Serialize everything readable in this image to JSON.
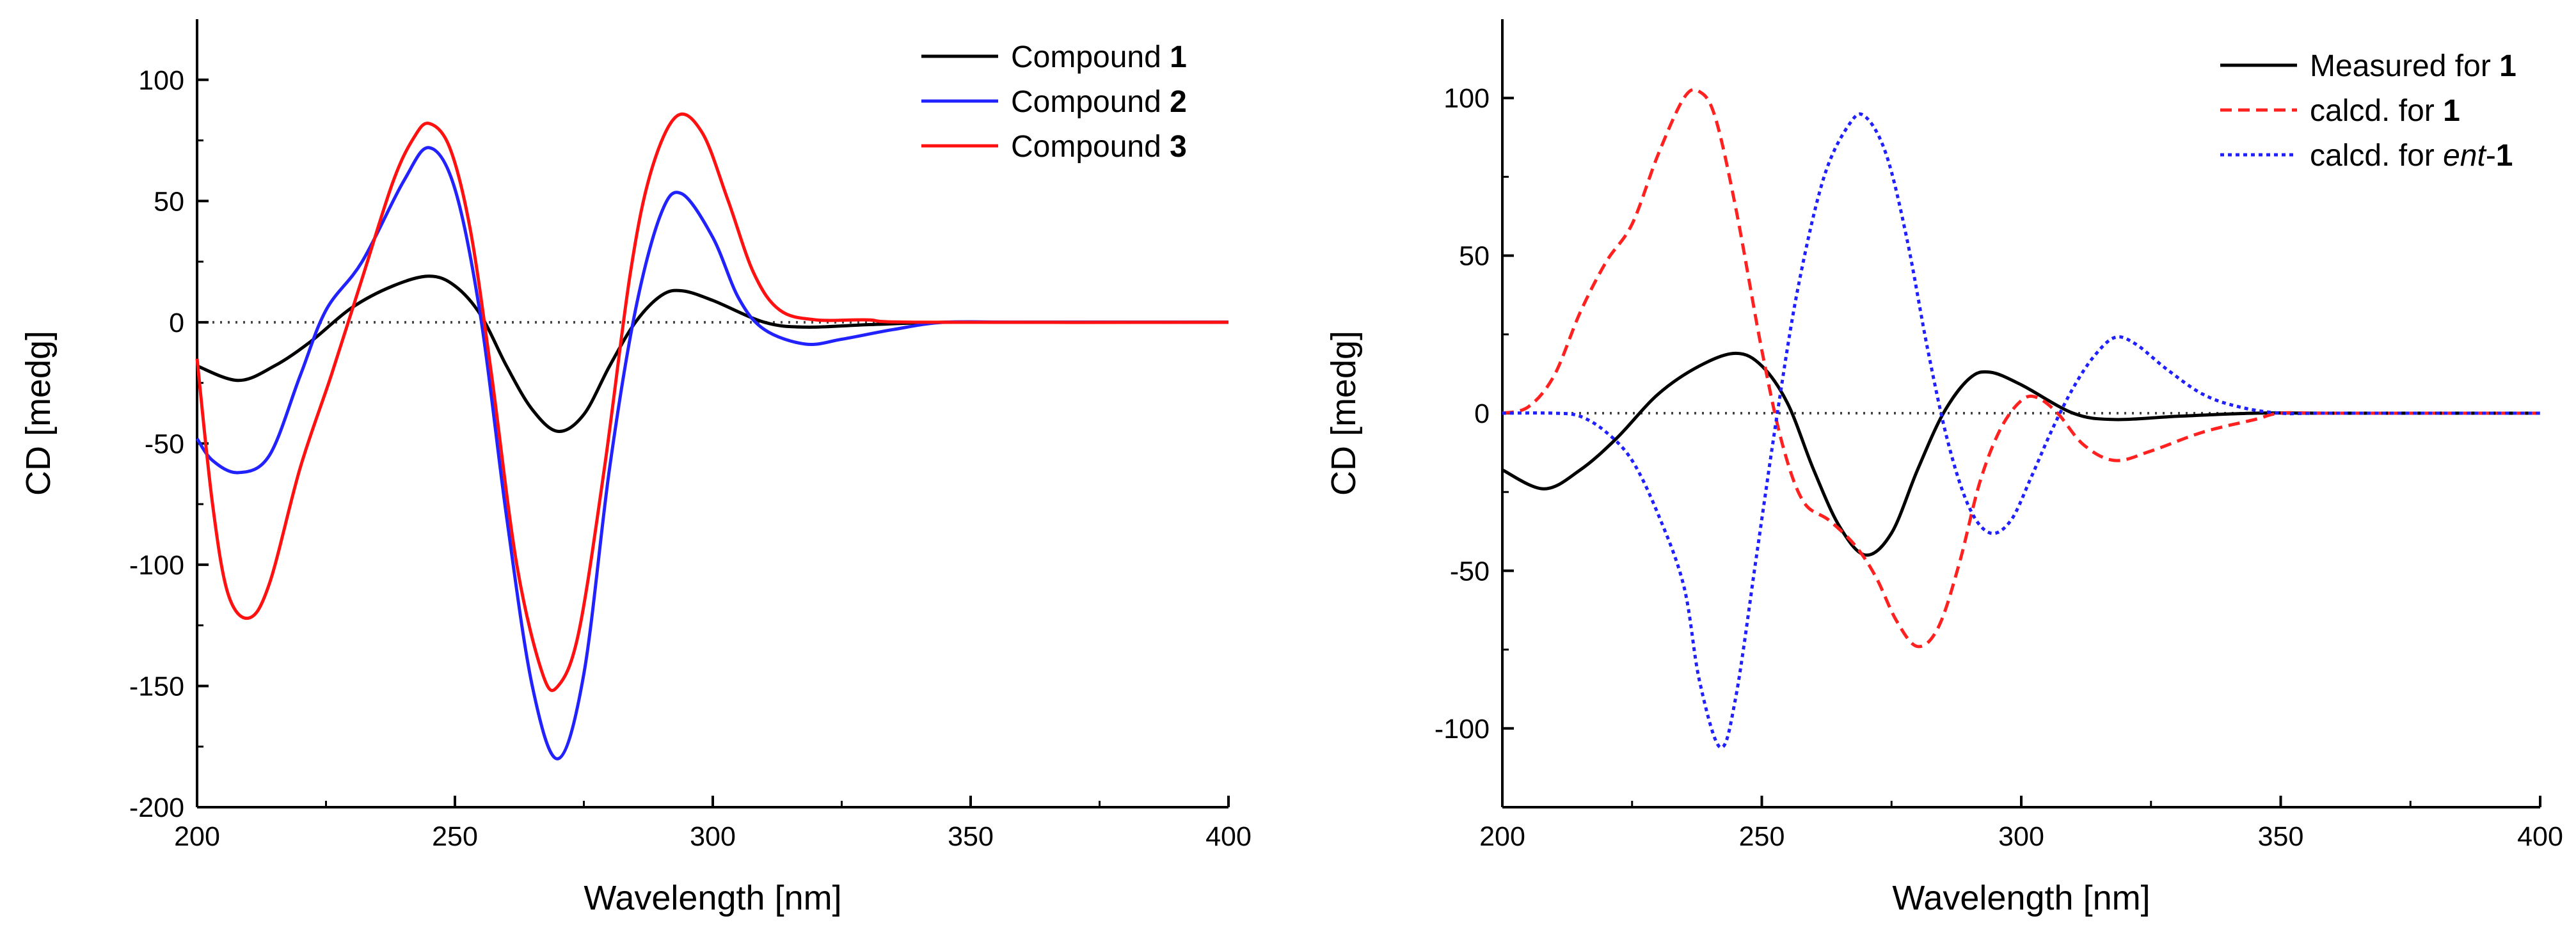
{
  "chart_data": [
    {
      "type": "line",
      "title": "",
      "xlabel": "Wavelength [nm]",
      "ylabel": "CD [medg]",
      "xlim": [
        200,
        400
      ],
      "ylim": [
        -200,
        125
      ],
      "xticks": [
        "200",
        "250",
        "300",
        "350",
        "400"
      ],
      "yticks": [
        "100",
        "50",
        "0",
        "-50",
        "-100",
        "-150",
        "-200"
      ],
      "zero_line": "dotted",
      "legend_position": "top-right",
      "series": [
        {
          "name": "Compound 1",
          "legend_prefix": "Compound ",
          "legend_bold": "1",
          "legend_italic": "",
          "legend_suffix": "",
          "color": "#000000",
          "dash": "solid",
          "points": [
            [
              200,
              -18
            ],
            [
              208,
              -24
            ],
            [
              215,
              -18
            ],
            [
              222,
              -8
            ],
            [
              230,
              6
            ],
            [
              238,
              15
            ],
            [
              245,
              19
            ],
            [
              250,
              15
            ],
            [
              255,
              3
            ],
            [
              260,
              -18
            ],
            [
              265,
              -36
            ],
            [
              270,
              -45
            ],
            [
              275,
              -38
            ],
            [
              280,
              -18
            ],
            [
              285,
              0
            ],
            [
              290,
              11
            ],
            [
              294,
              13
            ],
            [
              300,
              9
            ],
            [
              310,
              0
            ],
            [
              318,
              -2
            ],
            [
              330,
              -1
            ],
            [
              345,
              0
            ],
            [
              360,
              0
            ],
            [
              400,
              0
            ]
          ]
        },
        {
          "name": "Compound 2",
          "legend_prefix": "Compound ",
          "legend_bold": "2",
          "legend_italic": "",
          "legend_suffix": "",
          "color": "#2222ff",
          "dash": "solid",
          "points": [
            [
              200,
              -48
            ],
            [
              203,
              -57
            ],
            [
              208,
              -62
            ],
            [
              214,
              -55
            ],
            [
              220,
              -22
            ],
            [
              225,
              5
            ],
            [
              232,
              25
            ],
            [
              240,
              58
            ],
            [
              245,
              72
            ],
            [
              250,
              55
            ],
            [
              255,
              2
            ],
            [
              260,
              -80
            ],
            [
              265,
              -150
            ],
            [
              270,
              -180
            ],
            [
              275,
              -145
            ],
            [
              280,
              -60
            ],
            [
              285,
              5
            ],
            [
              290,
              45
            ],
            [
              294,
              53
            ],
            [
              300,
              35
            ],
            [
              305,
              10
            ],
            [
              310,
              -3
            ],
            [
              318,
              -9
            ],
            [
              325,
              -7
            ],
            [
              335,
              -3
            ],
            [
              345,
              0
            ],
            [
              360,
              0
            ],
            [
              400,
              0
            ]
          ]
        },
        {
          "name": "Compound 3",
          "legend_prefix": "Compound ",
          "legend_bold": "3",
          "legend_italic": "",
          "legend_suffix": "",
          "color": "#ff1111",
          "dash": "solid",
          "points": [
            [
              200,
              -15
            ],
            [
              203,
              -75
            ],
            [
              206,
              -112
            ],
            [
              210,
              -122
            ],
            [
              214,
              -108
            ],
            [
              220,
              -60
            ],
            [
              226,
              -22
            ],
            [
              232,
              18
            ],
            [
              238,
              58
            ],
            [
              242,
              76
            ],
            [
              245,
              82
            ],
            [
              249,
              72
            ],
            [
              253,
              38
            ],
            [
              257,
              -20
            ],
            [
              262,
              -100
            ],
            [
              267,
              -145
            ],
            [
              270,
              -150
            ],
            [
              274,
              -128
            ],
            [
              279,
              -60
            ],
            [
              284,
              20
            ],
            [
              288,
              62
            ],
            [
              293,
              85
            ],
            [
              298,
              78
            ],
            [
              303,
              50
            ],
            [
              308,
              20
            ],
            [
              313,
              5
            ],
            [
              320,
              1
            ],
            [
              330,
              1
            ],
            [
              340,
              0
            ],
            [
              400,
              0
            ]
          ]
        }
      ]
    },
    {
      "type": "line",
      "title": "",
      "xlabel": "Wavelength [nm]",
      "ylabel": "CD [medg]",
      "xlim": [
        200,
        400
      ],
      "ylim": [
        -125,
        125
      ],
      "xticks": [
        "200",
        "250",
        "300",
        "350",
        "400"
      ],
      "yticks": [
        "100",
        "50",
        "0",
        "-50",
        "-100"
      ],
      "zero_line": "dotted",
      "legend_position": "top-right",
      "series": [
        {
          "name": "Measured for 1",
          "legend_prefix": "Measured for ",
          "legend_bold": "1",
          "legend_italic": "",
          "legend_suffix": "",
          "color": "#000000",
          "dash": "solid",
          "points": [
            [
              200,
              -18
            ],
            [
              208,
              -24
            ],
            [
              215,
              -18
            ],
            [
              222,
              -8
            ],
            [
              230,
              6
            ],
            [
              238,
              15
            ],
            [
              245,
              19
            ],
            [
              250,
              15
            ],
            [
              255,
              3
            ],
            [
              260,
              -18
            ],
            [
              265,
              -36
            ],
            [
              270,
              -45
            ],
            [
              275,
              -38
            ],
            [
              280,
              -18
            ],
            [
              285,
              0
            ],
            [
              290,
              11
            ],
            [
              294,
              13
            ],
            [
              300,
              9
            ],
            [
              310,
              0
            ],
            [
              318,
              -2
            ],
            [
              330,
              -1
            ],
            [
              345,
              0
            ],
            [
              360,
              0
            ],
            [
              400,
              0
            ]
          ]
        },
        {
          "name": "calcd. for 1",
          "legend_prefix": "calcd. for ",
          "legend_bold": "1",
          "legend_italic": "",
          "legend_suffix": "",
          "color": "#ff2020",
          "dash": "dashed",
          "points": [
            [
              200,
              0
            ],
            [
              205,
              2
            ],
            [
              210,
              12
            ],
            [
              215,
              32
            ],
            [
              220,
              48
            ],
            [
              225,
              60
            ],
            [
              230,
              82
            ],
            [
              235,
              100
            ],
            [
              238,
              102
            ],
            [
              241,
              94
            ],
            [
              245,
              65
            ],
            [
              250,
              20
            ],
            [
              254,
              -10
            ],
            [
              258,
              -28
            ],
            [
              263,
              -34
            ],
            [
              268,
              -42
            ],
            [
              272,
              -52
            ],
            [
              276,
              -66
            ],
            [
              280,
              -74
            ],
            [
              284,
              -68
            ],
            [
              288,
              -48
            ],
            [
              292,
              -22
            ],
            [
              296,
              -5
            ],
            [
              300,
              4
            ],
            [
              303,
              5
            ],
            [
              307,
              0
            ],
            [
              312,
              -10
            ],
            [
              318,
              -15
            ],
            [
              325,
              -12
            ],
            [
              335,
              -6
            ],
            [
              345,
              -2
            ],
            [
              350,
              0
            ],
            [
              360,
              0
            ],
            [
              400,
              0
            ]
          ]
        },
        {
          "name": "calcd. for ent-1",
          "legend_prefix": "calcd. for ",
          "legend_bold": "1",
          "legend_italic": "ent",
          "legend_suffix": "-",
          "color": "#2020ff",
          "dash": "dotted",
          "points": [
            [
              200,
              0
            ],
            [
              210,
              0
            ],
            [
              215,
              -1
            ],
            [
              220,
              -6
            ],
            [
              225,
              -15
            ],
            [
              230,
              -32
            ],
            [
              235,
              -55
            ],
            [
              238,
              -85
            ],
            [
              242,
              -106
            ],
            [
              245,
              -90
            ],
            [
              249,
              -45
            ],
            [
              253,
              0
            ],
            [
              257,
              40
            ],
            [
              262,
              75
            ],
            [
              267,
              92
            ],
            [
              270,
              94
            ],
            [
              274,
              82
            ],
            [
              278,
              55
            ],
            [
              282,
              20
            ],
            [
              286,
              -10
            ],
            [
              290,
              -30
            ],
            [
              294,
              -38
            ],
            [
              298,
              -34
            ],
            [
              302,
              -20
            ],
            [
              306,
              -5
            ],
            [
              310,
              8
            ],
            [
              314,
              18
            ],
            [
              318,
              24
            ],
            [
              322,
              22
            ],
            [
              328,
              14
            ],
            [
              335,
              6
            ],
            [
              342,
              2
            ],
            [
              350,
              0
            ],
            [
              360,
              0
            ],
            [
              400,
              0
            ]
          ]
        }
      ]
    }
  ]
}
